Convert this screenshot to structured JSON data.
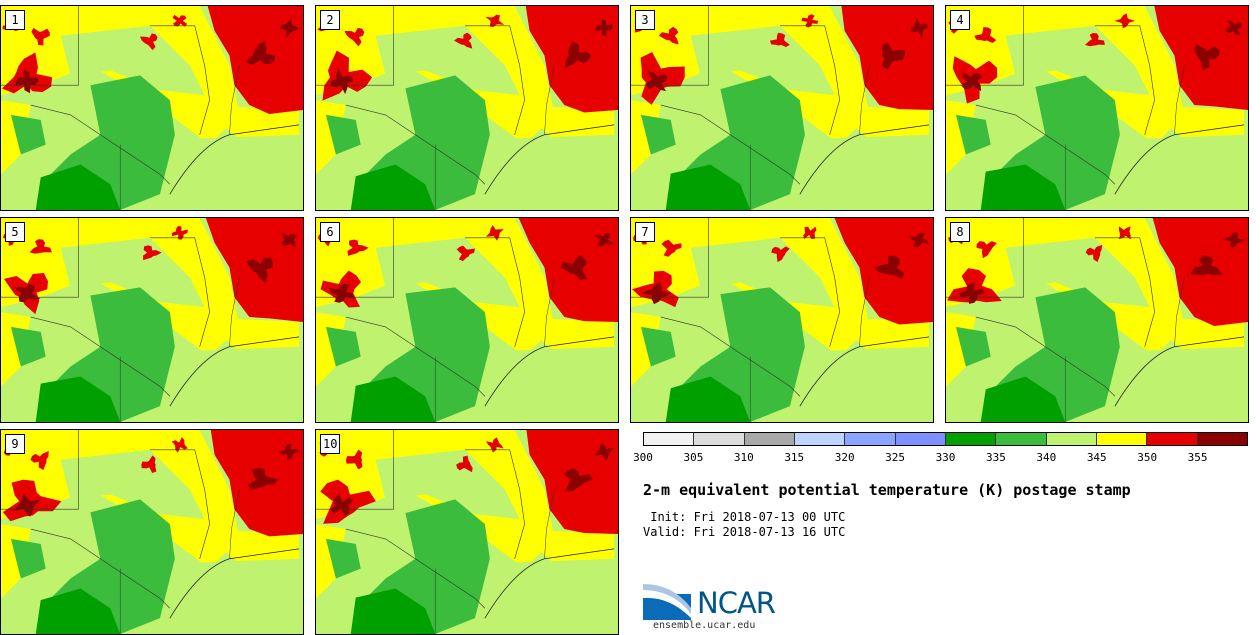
{
  "members": [
    "1",
    "2",
    "3",
    "4",
    "5",
    "6",
    "7",
    "8",
    "9",
    "10"
  ],
  "colorbar": {
    "ticks": [
      "300",
      "305",
      "310",
      "315",
      "320",
      "325",
      "330",
      "335",
      "340",
      "345",
      "350",
      "355"
    ],
    "colors": [
      "#f2f2f2",
      "#dcdcdc",
      "#a8a8a8",
      "#bcd4ff",
      "#8aa5ff",
      "#7c90ff",
      "#00a000",
      "#3cbc3c",
      "#bff26e",
      "#ffff00",
      "#e60000",
      "#8b0000"
    ]
  },
  "title": "2-m equivalent potential temperature (K) postage stamp",
  "init_line": " Init: Fri 2018-07-13 00 UTC",
  "valid_line": "Valid: Fri 2018-07-13 16 UTC",
  "logo": {
    "text": "NCAR",
    "url": "ensemble.ucar.edu"
  }
}
